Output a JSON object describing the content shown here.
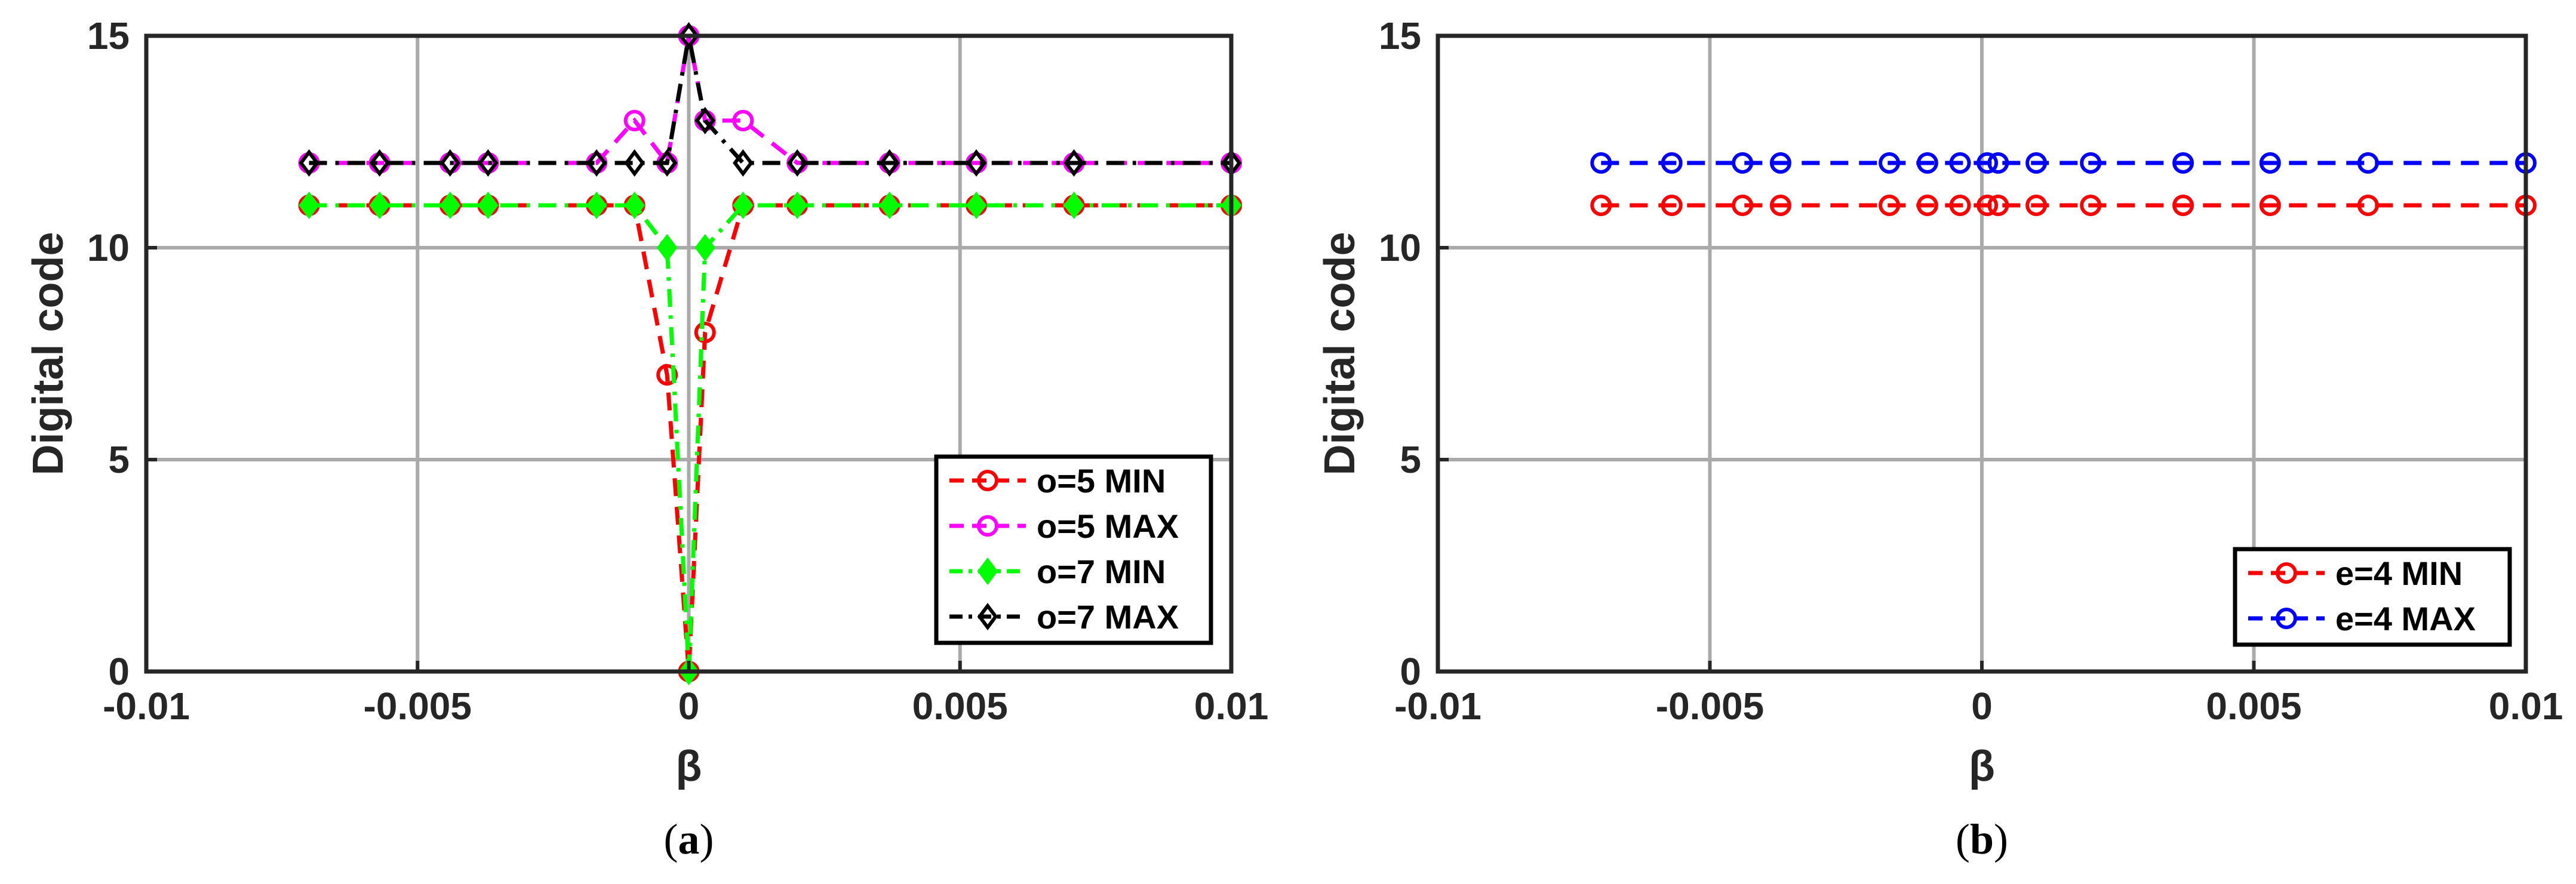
{
  "colors": {
    "red": "#ff0000",
    "magenta": "#ff00ff",
    "green": "#00ff00",
    "black": "#000000",
    "blue": "#0000ff",
    "grid": "#aaaaaa",
    "axis": "#262626"
  },
  "chart_data": [
    {
      "type": "line",
      "panel_label": "a",
      "xlabel": "β",
      "ylabel": "Digital code",
      "xlim": [
        -0.01,
        0.01
      ],
      "ylim": [
        0,
        15
      ],
      "xticks": [
        -0.01,
        -0.005,
        0,
        0.005,
        0.01
      ],
      "xtick_labels": [
        "-0.01",
        "-0.005",
        "0",
        "0.005",
        "0.01"
      ],
      "yticks": [
        0,
        5,
        10,
        15
      ],
      "ytick_labels": [
        "0",
        "5",
        "10",
        "15"
      ],
      "grid": true,
      "legend_position": "bottom-right",
      "series": [
        {
          "name": "o=5 MIN",
          "color": "red",
          "dash": "dashed",
          "marker": "circle-open",
          "x": [
            -0.007,
            -0.0057,
            -0.0044,
            -0.0037,
            -0.0017,
            -0.001,
            -0.0004,
            0,
            0.0003,
            0.001,
            0.002,
            0.0037,
            0.0053,
            0.0071,
            0.01
          ],
          "y": [
            11,
            11,
            11,
            11,
            11,
            11,
            7,
            0,
            8,
            11,
            11,
            11,
            11,
            11,
            11
          ]
        },
        {
          "name": "o=5 MAX",
          "color": "magenta",
          "dash": "dashed",
          "marker": "circle-open",
          "x": [
            -0.007,
            -0.0057,
            -0.0044,
            -0.0037,
            -0.0017,
            -0.001,
            -0.0004,
            0,
            0.0003,
            0.001,
            0.002,
            0.0037,
            0.0053,
            0.0071,
            0.01
          ],
          "y": [
            12,
            12,
            12,
            12,
            12,
            13,
            12,
            15,
            13,
            13,
            12,
            12,
            12,
            12,
            12
          ]
        },
        {
          "name": "o=7 MIN",
          "color": "green",
          "dash": "dashdot",
          "marker": "diamond-filled",
          "x": [
            -0.007,
            -0.0057,
            -0.0044,
            -0.0037,
            -0.0017,
            -0.001,
            -0.0004,
            0,
            0.0003,
            0.001,
            0.002,
            0.0037,
            0.0053,
            0.0071,
            0.01
          ],
          "y": [
            11,
            11,
            11,
            11,
            11,
            11,
            10,
            0,
            10,
            11,
            11,
            11,
            11,
            11,
            11
          ]
        },
        {
          "name": "o=7 MAX",
          "color": "black",
          "dash": "dashdot",
          "marker": "diamond-open",
          "x": [
            -0.007,
            -0.0057,
            -0.0044,
            -0.0037,
            -0.0017,
            -0.001,
            -0.0004,
            0,
            0.0003,
            0.001,
            0.002,
            0.0037,
            0.0053,
            0.0071,
            0.01
          ],
          "y": [
            12,
            12,
            12,
            12,
            12,
            12,
            12,
            15,
            13,
            12,
            12,
            12,
            12,
            12,
            12
          ]
        }
      ]
    },
    {
      "type": "line",
      "panel_label": "b",
      "xlabel": "β",
      "ylabel": "Digital code",
      "xlim": [
        -0.01,
        0.01
      ],
      "ylim": [
        0,
        15
      ],
      "xticks": [
        -0.01,
        -0.005,
        0,
        0.005,
        0.01
      ],
      "xtick_labels": [
        "-0.01",
        "-0.005",
        "0",
        "0.005",
        "0.01"
      ],
      "yticks": [
        0,
        5,
        10,
        15
      ],
      "ytick_labels": [
        "0",
        "5",
        "10",
        "15"
      ],
      "grid": true,
      "legend_position": "bottom-right",
      "series": [
        {
          "name": "e=4 MIN",
          "color": "red",
          "dash": "dashed",
          "marker": "circle-open",
          "x": [
            -0.007,
            -0.0057,
            -0.0044,
            -0.0037,
            -0.0017,
            -0.001,
            -0.0004,
            0.0001,
            0.0003,
            0.001,
            0.002,
            0.0037,
            0.0053,
            0.0071,
            0.01
          ],
          "y": [
            11,
            11,
            11,
            11,
            11,
            11,
            11,
            11,
            11,
            11,
            11,
            11,
            11,
            11,
            11
          ]
        },
        {
          "name": "e=4 MAX",
          "color": "blue",
          "dash": "dashed",
          "marker": "circle-open",
          "x": [
            -0.007,
            -0.0057,
            -0.0044,
            -0.0037,
            -0.0017,
            -0.001,
            -0.0004,
            0.0001,
            0.0003,
            0.001,
            0.002,
            0.0037,
            0.0053,
            0.0071,
            0.01
          ],
          "y": [
            12,
            12,
            12,
            12,
            12,
            12,
            12,
            12,
            12,
            12,
            12,
            12,
            12,
            12,
            12
          ]
        }
      ]
    }
  ]
}
